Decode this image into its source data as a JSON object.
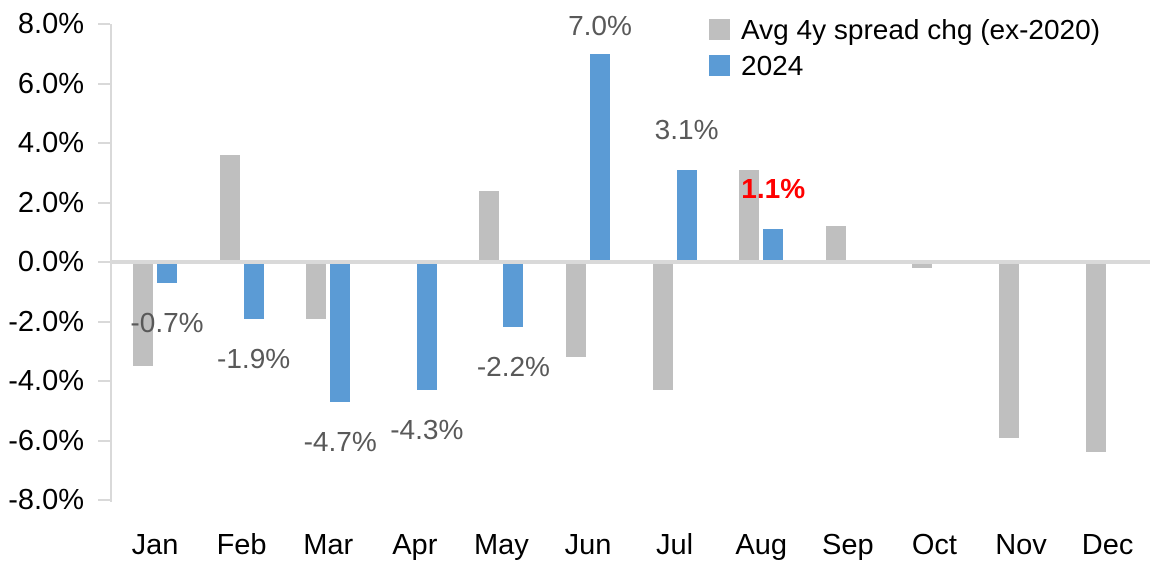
{
  "chart_data": {
    "type": "bar",
    "title": "",
    "xlabel": "",
    "ylabel": "",
    "categories": [
      "Jan",
      "Feb",
      "Mar",
      "Apr",
      "May",
      "Jun",
      "Jul",
      "Aug",
      "Sep",
      "Oct",
      "Nov",
      "Dec"
    ],
    "series": [
      {
        "name": "Avg 4y spread chg (ex-2020)",
        "color": "#BFBFBF",
        "values": [
          -3.5,
          3.6,
          -1.9,
          0.0,
          2.4,
          -3.2,
          -4.3,
          3.1,
          1.2,
          -0.2,
          -5.9,
          -6.4
        ]
      },
      {
        "name": "2024",
        "color": "#5B9BD5",
        "values": [
          -0.7,
          -1.9,
          -4.7,
          -4.3,
          -2.2,
          7.0,
          3.1,
          1.1,
          null,
          null,
          null,
          null
        ]
      }
    ],
    "data_labels": {
      "series": "2024",
      "texts": [
        "-0.7%",
        "-1.9%",
        "-4.7%",
        "-4.3%",
        "-2.2%",
        "7.0%",
        "3.1%",
        "1.1%",
        null,
        null,
        null,
        null
      ],
      "colors": [
        "#595959",
        "#595959",
        "#595959",
        "#595959",
        "#595959",
        "#595959",
        "#595959",
        "#FF0000",
        null,
        null,
        null,
        null
      ],
      "bold": [
        false,
        false,
        false,
        false,
        false,
        false,
        false,
        true,
        false,
        false,
        false,
        false
      ]
    },
    "y_axis": {
      "ticks": [
        "8.0%",
        "6.0%",
        "4.0%",
        "2.0%",
        "0.0%",
        "-2.0%",
        "-4.0%",
        "-6.0%",
        "-8.0%"
      ],
      "min": -8,
      "max": 8,
      "step": 2,
      "unit": "%"
    },
    "legend_position": "top-right",
    "grid": false,
    "axis_color": "#D9D9D9",
    "tick_label_color": "#000000",
    "data_label_color": "#595959",
    "highlight_label_color": "#FF0000"
  }
}
